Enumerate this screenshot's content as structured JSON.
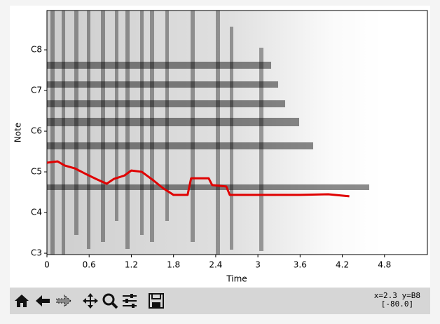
{
  "chart_data": {
    "type": "line",
    "xlabel": "Time",
    "ylabel": "Note",
    "xlim": [
      0,
      5.41
    ],
    "xticks": [
      0,
      0.6,
      1.2,
      1.8,
      2.4,
      3,
      3.6,
      4.2,
      4.8
    ],
    "ylim": [
      47.6,
      119.6
    ],
    "yticks": [
      {
        "value": 48,
        "label": "C3"
      },
      {
        "value": 60,
        "label": "C4"
      },
      {
        "value": 72,
        "label": "C5"
      },
      {
        "value": 84,
        "label": "C6"
      },
      {
        "value": 96,
        "label": "C7"
      },
      {
        "value": 108,
        "label": "C8"
      }
    ],
    "series": [
      {
        "color": "#e00000",
        "x": [
          0,
          0.15,
          0.25,
          0.4,
          0.55,
          0.7,
          0.85,
          0.95,
          1.1,
          1.2,
          1.35,
          1.5,
          1.65,
          1.8,
          2.0,
          2.05,
          2.3,
          2.35,
          2.55,
          2.6,
          3.0,
          3.6,
          4.0,
          4.3
        ],
        "values": [
          74.7,
          75.1,
          73.9,
          73.0,
          71.4,
          69.9,
          68.5,
          69.9,
          70.9,
          72.4,
          72.0,
          69.7,
          67.2,
          65.2,
          65.2,
          70.1,
          70.1,
          68.1,
          67.7,
          65.2,
          65.2,
          65.2,
          65.4,
          64.8
        ]
      }
    ]
  },
  "toolbar": {
    "status": [
      "x=2.3 y=B8",
      "[-80.0]"
    ]
  }
}
